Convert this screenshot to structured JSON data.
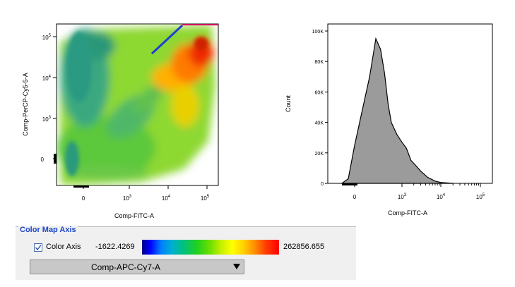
{
  "dot_plot": {
    "x_axis_label": "Comp-FITC-A",
    "y_axis_label": "Comp-PerCP-Cy5-5-A",
    "x_ticks": [
      "0",
      "10^3",
      "10^4",
      "10^5"
    ],
    "y_ticks": [
      "0",
      "10^3",
      "10^4",
      "10^5"
    ]
  },
  "chart_data": {
    "type": "area",
    "xlabel": "Comp-FITC-A",
    "ylabel": "Count",
    "x_scale": "biexponential",
    "x_ticks": [
      "0",
      "10^3",
      "10^4",
      "10^5"
    ],
    "y_ticks": [
      "0",
      "20K",
      "40K",
      "60K",
      "80K",
      "100K"
    ],
    "ylim": [
      0,
      100000
    ],
    "fill_color": "#9b9b9b",
    "series": [
      {
        "x": [
          -300,
          -150,
          0,
          100,
          200,
          300,
          400,
          500,
          600,
          800,
          1000,
          1300,
          1700,
          2200,
          3000,
          4500,
          7000,
          10000,
          20000
        ],
        "y": [
          0,
          3000,
          25000,
          70000,
          95000,
          88000,
          72000,
          52000,
          40000,
          32000,
          27000,
          23000,
          15000,
          12000,
          8000,
          4000,
          1500,
          500,
          0
        ]
      }
    ]
  },
  "color_map": {
    "section_title": "Color Map Axis",
    "checkbox_label": "Color Axis",
    "checkbox_checked": true,
    "min_value": "-1622.4269",
    "max_value": "262856.655",
    "gradient_colors": [
      "#00008b",
      "#0000ff",
      "#00b0d0",
      "#20d020",
      "#c8f000",
      "#ffff00",
      "#ff9000",
      "#ff0000"
    ],
    "parameter_selected": "Comp-APC-Cy7-A"
  }
}
